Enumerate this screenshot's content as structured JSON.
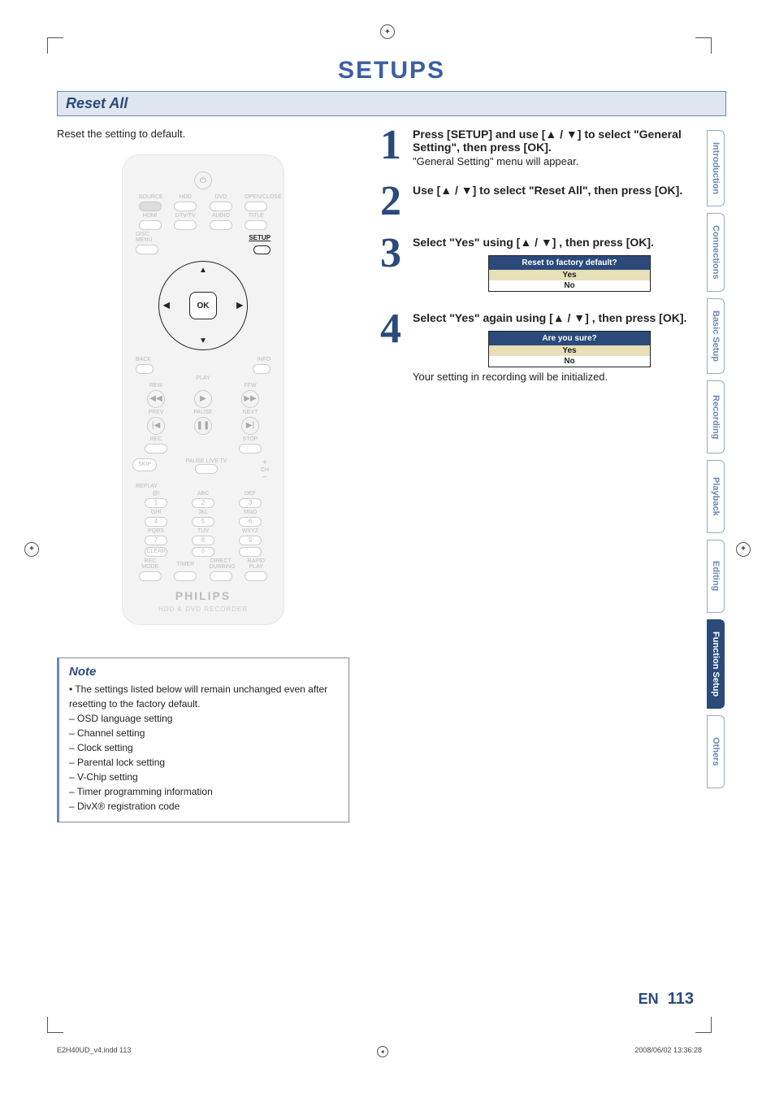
{
  "doc": {
    "title": "SETUPS",
    "section_header": "Reset All",
    "intro": "Reset the setting to default.",
    "page_lang": "EN",
    "page_number": "113",
    "footer_left": "E2H40UD_v4.indd   113",
    "footer_right": "2008/06/02   13:36:28"
  },
  "colors": {
    "accent": "#2b4a7a",
    "header_bg": "#dfe6ee",
    "header_border": "#6a89b5",
    "dialog_highlight": "#e7dfb7"
  },
  "steps": [
    {
      "num": "1",
      "lead": "Press [SETUP] and use [▲ / ▼] to select \"General Setting\", then press [OK].",
      "sub": "\"General Setting\" menu will appear."
    },
    {
      "num": "2",
      "lead": "Use [▲ / ▼] to select \"Reset All\", then press [OK].",
      "sub": ""
    },
    {
      "num": "3",
      "lead": "Select \"Yes\" using [▲ / ▼] , then press [OK].",
      "sub": "",
      "dialog": {
        "title": "Reset to factory default?",
        "options": [
          "Yes",
          "No"
        ],
        "selected": 0
      }
    },
    {
      "num": "4",
      "lead": "Select \"Yes\" again using [▲ / ▼] , then press [OK].",
      "sub": "Your setting in recording will be initialized.",
      "dialog": {
        "title": "Are you sure?",
        "options": [
          "Yes",
          "No"
        ],
        "selected": 0
      }
    }
  ],
  "note": {
    "title": "Note",
    "intro": "The settings listed below will remain unchanged even after resetting to the factory default.",
    "items": [
      "OSD language setting",
      "Channel setting",
      "Clock setting",
      "Parental lock setting",
      "V-Chip setting",
      "Timer programming information",
      "DivX® registration code"
    ]
  },
  "tabs": [
    {
      "label": "Introduction",
      "active": false
    },
    {
      "label": "Connections",
      "active": false
    },
    {
      "label": "Basic Setup",
      "active": false
    },
    {
      "label": "Recording",
      "active": false
    },
    {
      "label": "Playback",
      "active": false
    },
    {
      "label": "Editing",
      "active": false
    },
    {
      "label": "Function Setup",
      "active": true
    },
    {
      "label": "Others",
      "active": false
    }
  ],
  "remote": {
    "brand": "PHILIPS",
    "subbrand": "HDD & DVD RECORDER",
    "dpad_ok": "OK",
    "setup_label": "SETUP",
    "rows_top": [
      [
        "SOURCE",
        "HDD",
        "DVD",
        "OPEN/CLOSE"
      ],
      [
        "HDMI",
        "DTV/TV",
        "AUDIO",
        "TITLE"
      ]
    ],
    "disc_menu": "DISC MENU",
    "back": "BACK",
    "info": "INFO",
    "play_row": "PLAY",
    "transport_labels_1": [
      "REW",
      "",
      "FFW"
    ],
    "transport_labels_2": [
      "PREV",
      "PAUSE",
      "NEXT"
    ],
    "transport_labels_3": [
      "REC",
      "",
      "STOP"
    ],
    "skip": "SKIP",
    "pause_live": "PAUSE LIVE TV",
    "replay": "REPLAY",
    "keypad_labels": [
      [
        "@!",
        "ABC",
        "DEF"
      ],
      [
        "GHI",
        "JKL",
        "MNO"
      ],
      [
        "PQRS",
        "TUV",
        "WXYZ"
      ]
    ],
    "keypad_nums": [
      [
        "1",
        "2",
        "3"
      ],
      [
        "4",
        "5",
        "6"
      ],
      [
        "7",
        "8",
        "9"
      ],
      [
        "CLEAR",
        "0",
        "."
      ]
    ],
    "bottom_row": [
      "REC MODE",
      "TIMER",
      "DIRECT DUBBING",
      "RAPID PLAY"
    ],
    "ch": "CH"
  }
}
